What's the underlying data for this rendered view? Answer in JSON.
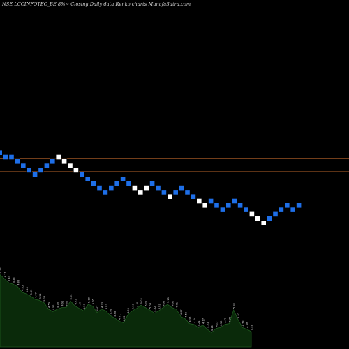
{
  "title": "NSE LCCINFOTEC_BE 8%~  Closing Daily data  Renko  charts MunafaSutra.com",
  "colors": {
    "background": "#000000",
    "up_brick": "#ffffff",
    "down_brick": "#1e6fe8",
    "brick_border": "#000000",
    "hline": "#b8632a",
    "volume_fill": "#0a2a0a",
    "volume_stroke": "#1f5c1f",
    "volume_label": "#cccccc"
  },
  "chart_data": {
    "type": "renko",
    "brick_direction": [
      "down",
      "down",
      "down",
      "down",
      "down",
      "down",
      "down",
      "down",
      "down",
      "down",
      "up",
      "up",
      "up",
      "up",
      "down",
      "down",
      "down",
      "down",
      "down",
      "down",
      "down",
      "down",
      "down",
      "up",
      "up",
      "up",
      "down",
      "down",
      "down",
      "up",
      "down",
      "down",
      "down",
      "down",
      "up",
      "up",
      "down",
      "down",
      "down",
      "down",
      "down",
      "down",
      "down",
      "up",
      "up",
      "up",
      "down",
      "down",
      "down",
      "down",
      "down",
      "down"
    ],
    "brick_row_from_top": [
      0,
      1,
      1,
      2,
      3,
      4,
      5,
      4,
      3,
      2,
      1,
      2,
      3,
      4,
      5,
      6,
      7,
      8,
      9,
      8,
      7,
      6,
      7,
      8,
      9,
      8,
      7,
      8,
      9,
      10,
      9,
      8,
      9,
      10,
      11,
      12,
      11,
      12,
      13,
      12,
      11,
      12,
      13,
      14,
      15,
      16,
      15,
      14,
      13,
      12,
      13,
      12
    ],
    "horizontal_levels_rows": [
      0.5,
      3.5
    ],
    "volume": {
      "bars": [
        9,
        8.5,
        8,
        7.8,
        7.5,
        6.8,
        6.6,
        6.3,
        5.9,
        5.8,
        5.5,
        4.7,
        4.4,
        4.7,
        4.9,
        4.9,
        5.7,
        5.1,
        4.8,
        4.5,
        5.3,
        5.1,
        4.3,
        4.7,
        4.5,
        3.9,
        3.6,
        3.2,
        3.0,
        4.0,
        4.5,
        4.8,
        5.2,
        4.9,
        4.6,
        4.2,
        4.5,
        4.9,
        5.3,
        4.9,
        4.7,
        3.8,
        3.5,
        2.9,
        2.8,
        2.4,
        2.7,
        2.2,
        1.8,
        2.3,
        2.4,
        2.8,
        2.9,
        4.6,
        3.4,
        2.4,
        2.2,
        1.9
      ],
      "labels": [
        "5.39",
        "4.71",
        "5.42",
        "5.35",
        "4.88",
        "4.65",
        "5.15",
        "5.35",
        "4.77",
        "5.92",
        "5.38",
        "4.59",
        "4.52",
        "5.79",
        "4.91",
        "4.62",
        "5.04",
        "4.73",
        "4.57",
        "4.59",
        "5.18",
        "5.06",
        "4.47",
        "4.33",
        "5.03",
        "4.96",
        "4.68",
        "4.71",
        "4.62",
        "4.99",
        "5.13",
        "4.49",
        "5.03",
        "5.21",
        "5.04",
        "4.82",
        "5.62",
        "4.95",
        "5.15",
        "4.90",
        "4.71",
        "4.67",
        "4.59",
        "4.35",
        "4.34",
        "4.21",
        "4.17",
        "4.23",
        "4.14",
        "4.23",
        "4.50",
        "4.75",
        "4.78",
        "5.80",
        "4.87",
        "4.78",
        "4.56",
        "4.46"
      ]
    }
  }
}
